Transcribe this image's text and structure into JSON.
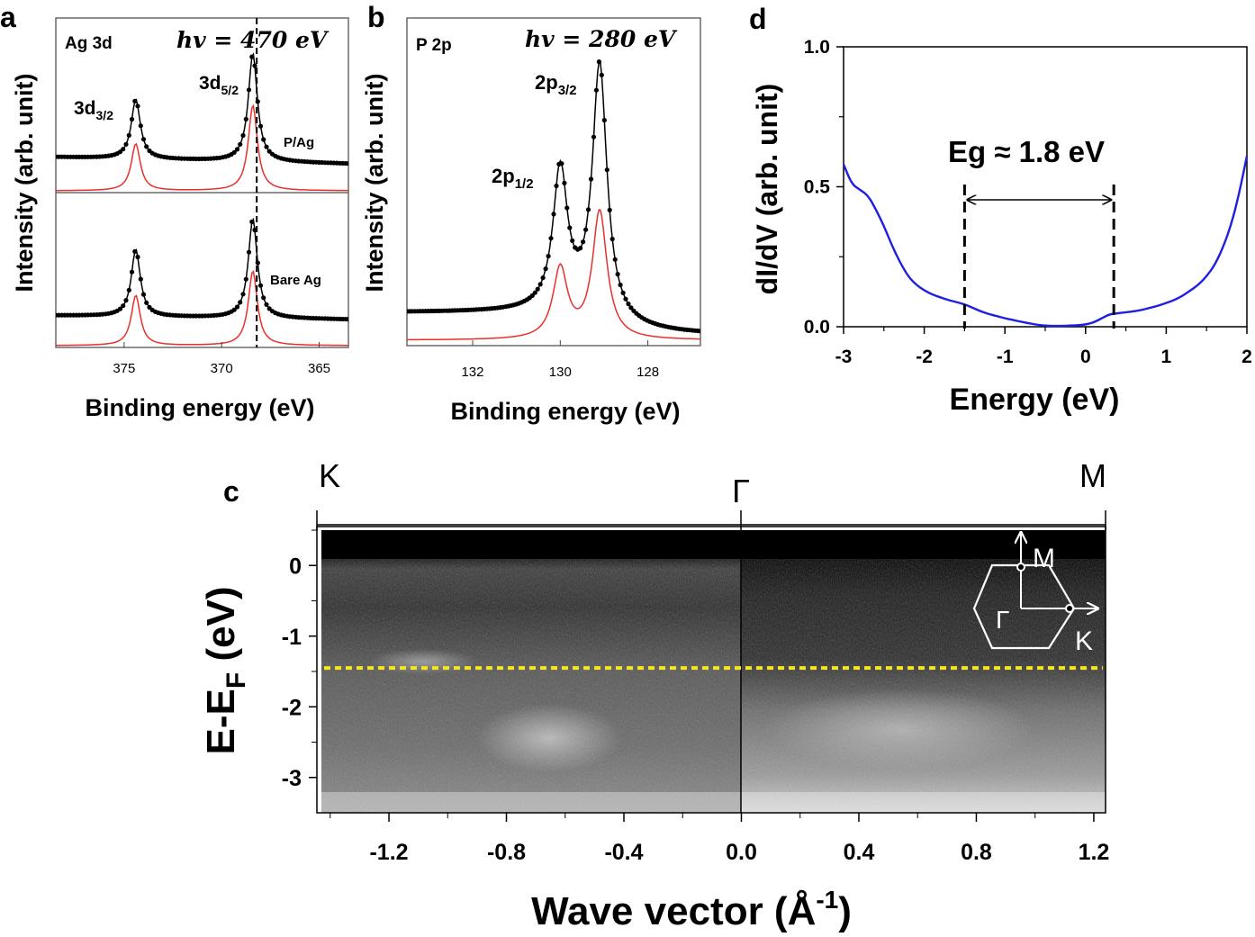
{
  "colors": {
    "data_black": "#000000",
    "fit_red": "#e8302c",
    "sts_blue": "#1f1fe0",
    "ef_yellow": "#f5e61e",
    "frame": "#6a6a6a"
  },
  "chart_data": [
    {
      "id": "a",
      "type": "line",
      "panel_label": "a",
      "title": "Ag 3d",
      "photon_energy": "hv = 470 eV",
      "xlabel": "Binding energy (eV)",
      "ylabel": "Intensity (arb. unit)",
      "xlim": [
        378.5,
        363.5
      ],
      "xticks": [
        "375",
        "370",
        "365"
      ],
      "subpanels": [
        {
          "name": "P/Ag",
          "peaks": [
            {
              "label": "3d3/2",
              "label_main": "3d",
              "label_sub": "3/2",
              "center": 374.4,
              "height": 0.55
            },
            {
              "label": "3d5/2",
              "label_main": "3d",
              "label_sub": "5/2",
              "center": 368.4,
              "height": 1.0
            }
          ]
        },
        {
          "name": "Bare Ag",
          "peaks": [
            {
              "center": 374.4,
              "height": 0.62
            },
            {
              "center": 368.4,
              "height": 0.92
            }
          ]
        }
      ],
      "dashed_line_x": 368.2
    },
    {
      "id": "b",
      "type": "line",
      "panel_label": "b",
      "title": "P 2p",
      "photon_energy": "hv = 280 eV",
      "xlabel": "Binding energy (eV)",
      "ylabel": "Intensity (arb. unit)",
      "xlim": [
        133.5,
        126.8
      ],
      "xticks": [
        "132",
        "130",
        "128"
      ],
      "peaks": [
        {
          "label": "2p1/2",
          "label_main": "2p",
          "label_sub": "1/2",
          "center": 130.0,
          "height": 0.55
        },
        {
          "label": "2p3/2",
          "label_main": "2p",
          "label_sub": "3/2",
          "center": 129.1,
          "height": 1.0
        }
      ]
    },
    {
      "id": "d",
      "type": "line",
      "panel_label": "d",
      "xlabel": "Energy (eV)",
      "ylabel": "dI/dV (arb. unit)",
      "xlim": [
        -3,
        2
      ],
      "ylim": [
        0,
        1.0
      ],
      "xticks": [
        "-3",
        "-2",
        "-1",
        "0",
        "1",
        "2"
      ],
      "yticks": [
        "0.0",
        "0.5",
        "1.0"
      ],
      "annotation": "Eg ≈ 1.8 eV",
      "gap_edges": [
        -1.5,
        0.35
      ],
      "x": [
        -3.0,
        -2.9,
        -2.8,
        -2.7,
        -2.6,
        -2.5,
        -2.4,
        -2.3,
        -2.2,
        -2.1,
        -2.0,
        -1.9,
        -1.8,
        -1.7,
        -1.6,
        -1.5,
        -1.4,
        -1.3,
        -1.2,
        -1.1,
        -1.0,
        -0.9,
        -0.8,
        -0.7,
        -0.6,
        -0.5,
        -0.4,
        -0.3,
        -0.2,
        -0.1,
        0.0,
        0.1,
        0.2,
        0.3,
        0.4,
        0.5,
        0.6,
        0.7,
        0.8,
        0.9,
        1.0,
        1.1,
        1.2,
        1.3,
        1.4,
        1.5,
        1.6,
        1.7,
        1.8,
        1.9,
        2.0
      ],
      "y": [
        0.58,
        0.51,
        0.49,
        0.47,
        0.42,
        0.36,
        0.29,
        0.23,
        0.18,
        0.15,
        0.13,
        0.115,
        0.105,
        0.095,
        0.088,
        0.08,
        0.068,
        0.055,
        0.045,
        0.038,
        0.03,
        0.024,
        0.018,
        0.012,
        0.007,
        0.004,
        0.003,
        0.003,
        0.004,
        0.005,
        0.008,
        0.015,
        0.03,
        0.045,
        0.048,
        0.052,
        0.055,
        0.06,
        0.068,
        0.075,
        0.085,
        0.095,
        0.11,
        0.13,
        0.15,
        0.18,
        0.22,
        0.28,
        0.36,
        0.47,
        0.61
      ]
    },
    {
      "id": "c",
      "type": "heatmap",
      "panel_label": "c",
      "xlabel": "Wave vector (Å⁻¹)",
      "xlabel_main": "Wave vector (Å",
      "xlabel_sup": "-1",
      "xlabel_end": ")",
      "ylabel": "E-EF (eV)",
      "ylabel_main": "E-E",
      "ylabel_sub": "F",
      "ylabel_end": " (eV)",
      "xlim": [
        -1.43,
        1.24
      ],
      "ylim": [
        -3.5,
        0.5
      ],
      "xticks": [
        "-1.2",
        "-0.8",
        "-0.4",
        "0.0",
        "0.4",
        "0.8",
        "1.2"
      ],
      "yticks": [
        "0",
        "-1",
        "-2",
        "-3"
      ],
      "symmetry_points": [
        "K",
        "Γ",
        "M"
      ],
      "fermi_line_y": -1.45,
      "inset_labels": [
        "M",
        "Γ",
        "K"
      ]
    }
  ]
}
